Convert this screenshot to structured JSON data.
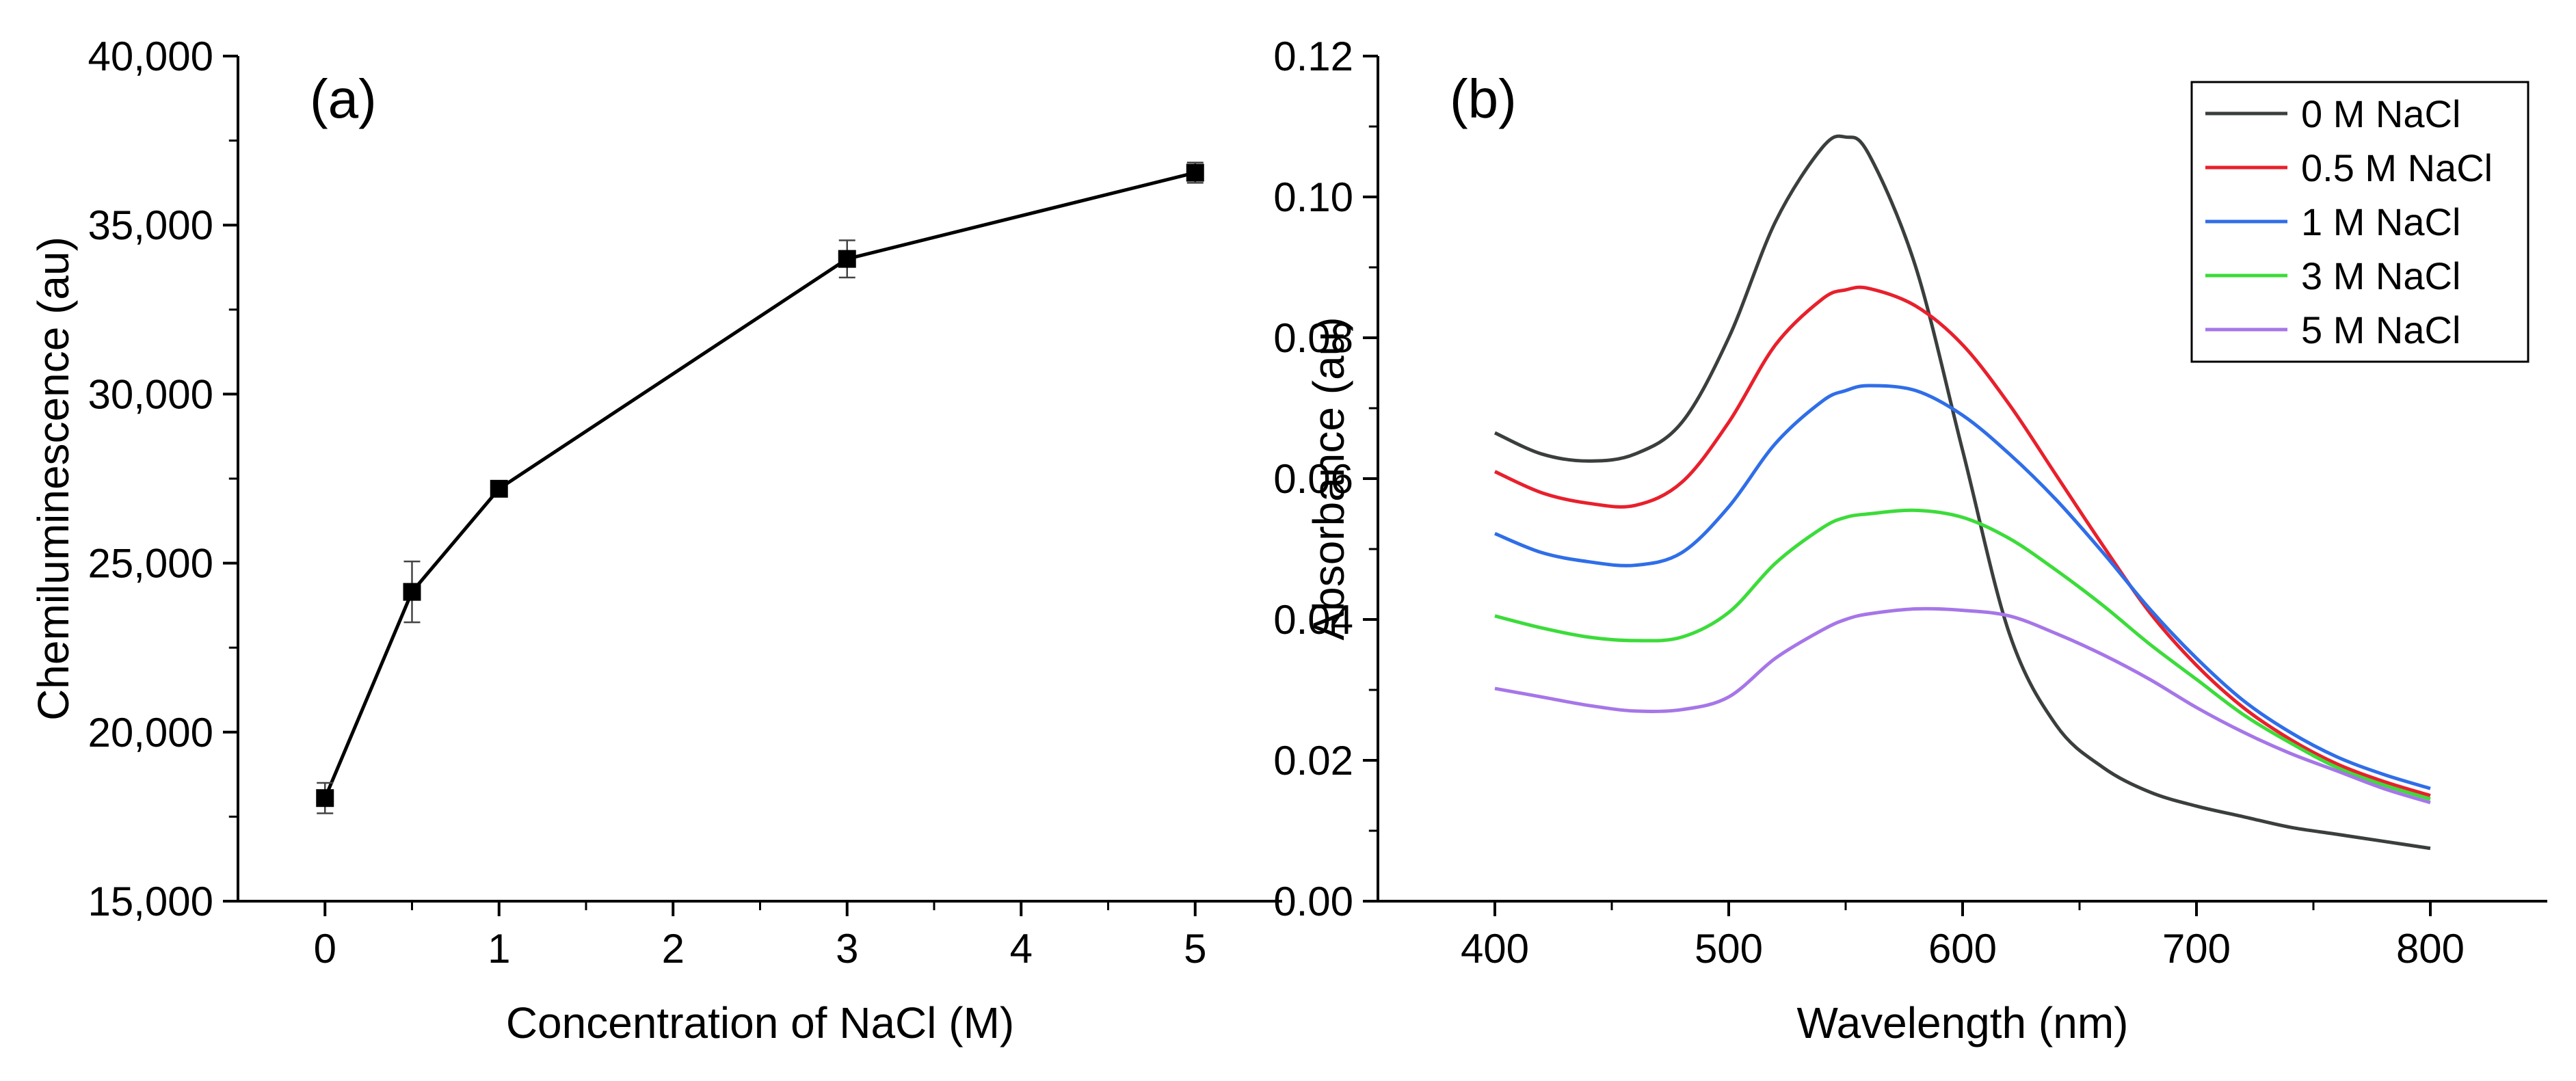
{
  "chart_data": [
    {
      "type": "line",
      "panel_label": "(a)",
      "xlabel": "Concentration of NaCl (M)",
      "ylabel": "Chemiluminescence (au)",
      "xlim": [
        -0.5,
        5.5
      ],
      "ylim": [
        15000,
        40000
      ],
      "x_ticks": [
        0,
        1,
        2,
        3,
        4,
        5
      ],
      "x_tick_labels": [
        "0",
        "1",
        "2",
        "3",
        "4",
        "5"
      ],
      "y_ticks": [
        15000,
        20000,
        25000,
        30000,
        35000,
        40000
      ],
      "y_tick_labels": [
        "15,000",
        "20,000",
        "25,000",
        "30,000",
        "35,000",
        "40,000"
      ],
      "grid": false,
      "series": [
        {
          "name": "Chemiluminescence",
          "color": "#000000",
          "marker": "square",
          "x": [
            0,
            0.5,
            1,
            3,
            5
          ],
          "y": [
            18050,
            24150,
            27200,
            34000,
            36550
          ],
          "error": [
            450,
            900,
            100,
            550,
            300
          ]
        }
      ]
    },
    {
      "type": "line",
      "panel_label": "(b)",
      "xlabel": "Wavelength (nm)",
      "ylabel": "Absorbance (au)",
      "xlim": [
        350,
        850
      ],
      "ylim": [
        0,
        0.12
      ],
      "x_ticks": [
        400,
        500,
        600,
        700,
        800
      ],
      "x_tick_labels": [
        "400",
        "500",
        "600",
        "700",
        "800"
      ],
      "y_ticks": [
        0,
        0.02,
        0.04,
        0.06,
        0.08,
        0.1,
        0.12
      ],
      "y_tick_labels": [
        "0.00",
        "0.02",
        "0.04",
        "0.06",
        "0.08",
        "0.10",
        "0.12"
      ],
      "grid": false,
      "legend_position": "top-right",
      "x": [
        400,
        420,
        440,
        460,
        480,
        500,
        520,
        540,
        550,
        560,
        580,
        600,
        620,
        640,
        660,
        680,
        700,
        720,
        740,
        760,
        780,
        800
      ],
      "series": [
        {
          "name": "0 M NaCl",
          "color": "#3a3f3e",
          "values": [
            0.0665,
            0.0635,
            0.0625,
            0.0635,
            0.068,
            0.08,
            0.0965,
            0.107,
            0.1085,
            0.106,
            0.09,
            0.064,
            0.038,
            0.025,
            0.019,
            0.0155,
            0.0135,
            0.012,
            0.0105,
            0.0095,
            0.0085,
            0.0075
          ]
        },
        {
          "name": "0.5 M NaCl",
          "color": "#e8202c",
          "values": [
            0.061,
            0.058,
            0.0565,
            0.0562,
            0.0595,
            0.068,
            0.079,
            0.0855,
            0.0868,
            0.087,
            0.0845,
            0.079,
            0.0705,
            0.0605,
            0.0505,
            0.041,
            0.0335,
            0.0275,
            0.023,
            0.0195,
            0.017,
            0.015
          ]
        },
        {
          "name": "1 M NaCl",
          "color": "#2f6ee8",
          "values": [
            0.0522,
            0.0495,
            0.0482,
            0.0477,
            0.0495,
            0.056,
            0.065,
            0.071,
            0.0725,
            0.0732,
            0.0725,
            0.069,
            0.0635,
            0.057,
            0.0495,
            0.0415,
            0.0345,
            0.0285,
            0.024,
            0.0205,
            0.018,
            0.016
          ]
        },
        {
          "name": "3 M NaCl",
          "color": "#3cdc3a",
          "values": [
            0.0405,
            0.0388,
            0.0375,
            0.037,
            0.0375,
            0.041,
            0.048,
            0.053,
            0.0545,
            0.055,
            0.0555,
            0.0545,
            0.0515,
            0.047,
            0.042,
            0.0365,
            0.0315,
            0.0265,
            0.0225,
            0.019,
            0.0165,
            0.0145
          ]
        },
        {
          "name": "5 M NaCl",
          "color": "#a676e8",
          "values": [
            0.0302,
            0.029,
            0.0278,
            0.027,
            0.0272,
            0.029,
            0.0345,
            0.0385,
            0.04,
            0.0408,
            0.0415,
            0.0413,
            0.0405,
            0.038,
            0.035,
            0.0315,
            0.0275,
            0.024,
            0.021,
            0.0185,
            0.016,
            0.014
          ]
        }
      ]
    }
  ]
}
